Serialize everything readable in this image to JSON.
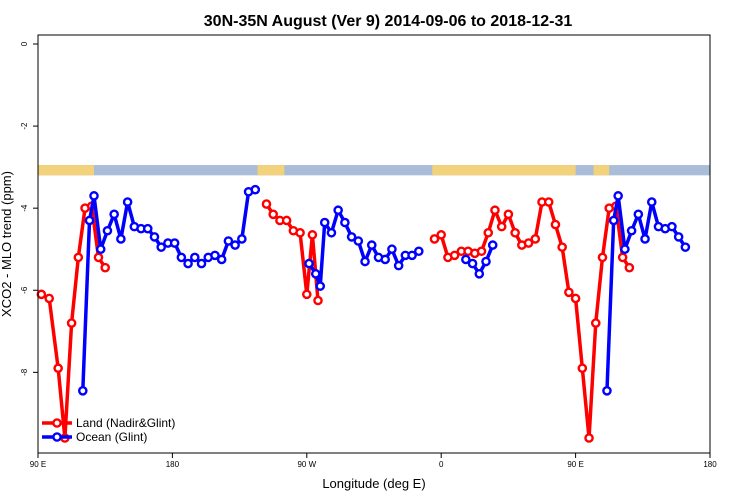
{
  "chart_data": {
    "type": "line",
    "title": "30N-35N August (Ver 9)   2014-09-06 to 2018-12-31",
    "xlabel": "Longitude (deg E)",
    "ylabel": "XCO2 - MLO trend (ppm)",
    "xlim": [
      90,
      390
    ],
    "ylim": [
      -9.6,
      0
    ],
    "x_ticks": [
      {
        "value": 90,
        "label": "90 E"
      },
      {
        "value": 150,
        "label": "180"
      },
      {
        "value": 210,
        "label": "90 W"
      },
      {
        "value": 270,
        "label": "0"
      },
      {
        "value": 330,
        "label": "90 E"
      },
      {
        "value": 390,
        "label": "180"
      }
    ],
    "y_ticks": [
      {
        "value": 0,
        "label": "0"
      },
      {
        "value": -2,
        "label": "-2"
      },
      {
        "value": -4,
        "label": "-4"
      },
      {
        "value": -6,
        "label": "-6"
      },
      {
        "value": -8,
        "label": "-8"
      }
    ],
    "land_mask_band": {
      "y_range": [
        -2.95,
        -3.2
      ],
      "land_color": "#F2D27A",
      "ocean_color": "#A9BCD8",
      "land_intervals": [
        [
          90,
          115
        ],
        [
          188,
          200
        ],
        [
          266,
          330
        ],
        [
          338,
          345
        ]
      ]
    },
    "legend": {
      "placement": "bottom-left",
      "entries": [
        "Land (Nadir&Glint)",
        "Ocean (Glint)"
      ]
    },
    "series": [
      {
        "name": "Land (Nadir&Glint)",
        "color": "#FF0000",
        "segments": [
          [
            [
              91.5,
              -6.1
            ],
            [
              95,
              -6.2
            ],
            [
              99,
              -7.9
            ],
            [
              102,
              -9.6
            ],
            [
              105,
              -6.8
            ],
            [
              108,
              -5.2
            ],
            [
              111,
              -4.0
            ],
            [
              114,
              -3.95
            ],
            [
              117,
              -5.2
            ],
            [
              120,
              -5.45
            ]
          ],
          [
            [
              192,
              -3.9
            ],
            [
              195,
              -4.15
            ],
            [
              198,
              -4.3
            ],
            [
              201,
              -4.3
            ],
            [
              204,
              -4.55
            ],
            [
              207,
              -4.6
            ],
            [
              210,
              -6.1
            ],
            [
              212.5,
              -4.65
            ],
            [
              215,
              -6.25
            ]
          ],
          [
            [
              267,
              -4.75
            ],
            [
              270,
              -4.65
            ],
            [
              273,
              -5.2
            ],
            [
              276,
              -5.15
            ],
            [
              279,
              -5.05
            ],
            [
              282,
              -5.05
            ],
            [
              285,
              -5.1
            ],
            [
              288,
              -5.05
            ],
            [
              291,
              -4.6
            ],
            [
              294,
              -4.05
            ],
            [
              297,
              -4.45
            ],
            [
              300,
              -4.15
            ],
            [
              303,
              -4.6
            ],
            [
              306,
              -4.9
            ],
            [
              309,
              -4.85
            ],
            [
              312,
              -4.75
            ],
            [
              315,
              -3.85
            ],
            [
              318,
              -3.85
            ],
            [
              321,
              -4.4
            ],
            [
              324,
              -4.95
            ],
            [
              327,
              -6.05
            ],
            [
              330,
              -6.2
            ],
            [
              333,
              -7.9
            ],
            [
              336,
              -9.6
            ],
            [
              339,
              -6.8
            ],
            [
              342,
              -5.2
            ],
            [
              345,
              -4.0
            ],
            [
              348,
              -3.95
            ],
            [
              351,
              -5.2
            ],
            [
              354,
              -5.45
            ]
          ]
        ]
      },
      {
        "name": "Ocean (Glint)",
        "color": "#0000FF",
        "segments": [
          [
            [
              110,
              -8.45
            ],
            [
              113,
              -4.3
            ],
            [
              115,
              -3.7
            ],
            [
              118,
              -5.0
            ],
            [
              121,
              -4.55
            ],
            [
              124,
              -4.15
            ],
            [
              127,
              -4.75
            ],
            [
              130,
              -3.85
            ],
            [
              133,
              -4.45
            ],
            [
              136,
              -4.5
            ],
            [
              139,
              -4.5
            ],
            [
              142,
              -4.7
            ],
            [
              145,
              -4.95
            ],
            [
              148,
              -4.85
            ],
            [
              151,
              -4.85
            ],
            [
              154,
              -5.2
            ],
            [
              157,
              -5.35
            ],
            [
              160,
              -5.2
            ],
            [
              163,
              -5.35
            ],
            [
              166,
              -5.2
            ],
            [
              169,
              -5.15
            ],
            [
              172,
              -5.25
            ],
            [
              175,
              -4.8
            ],
            [
              178,
              -4.9
            ],
            [
              181,
              -4.75
            ],
            [
              184,
              -3.6
            ],
            [
              187,
              -3.55
            ]
          ],
          [
            [
              211,
              -5.35
            ],
            [
              214,
              -5.6
            ],
            [
              216,
              -5.9
            ],
            [
              218,
              -4.35
            ],
            [
              221,
              -4.6
            ],
            [
              224,
              -4.05
            ],
            [
              227,
              -4.35
            ],
            [
              230,
              -4.7
            ],
            [
              233,
              -4.8
            ],
            [
              236,
              -5.3
            ],
            [
              239,
              -4.9
            ],
            [
              242,
              -5.2
            ],
            [
              245,
              -5.25
            ],
            [
              248,
              -5.0
            ],
            [
              251,
              -5.4
            ],
            [
              254,
              -5.15
            ],
            [
              257,
              -5.15
            ],
            [
              260,
              -5.05
            ]
          ],
          [
            [
              281,
              -5.25
            ],
            [
              284,
              -5.35
            ],
            [
              287,
              -5.6
            ],
            [
              290,
              -5.3
            ],
            [
              293,
              -4.9
            ]
          ],
          [
            [
              344,
              -8.45
            ],
            [
              347,
              -4.3
            ],
            [
              349,
              -3.7
            ],
            [
              352,
              -5.0
            ],
            [
              355,
              -4.55
            ],
            [
              358,
              -4.15
            ],
            [
              361,
              -4.75
            ],
            [
              364,
              -3.85
            ],
            [
              367,
              -4.45
            ],
            [
              370,
              -4.5
            ],
            [
              373,
              -4.45
            ],
            [
              376,
              -4.7
            ],
            [
              379,
              -4.95
            ]
          ]
        ]
      }
    ]
  }
}
